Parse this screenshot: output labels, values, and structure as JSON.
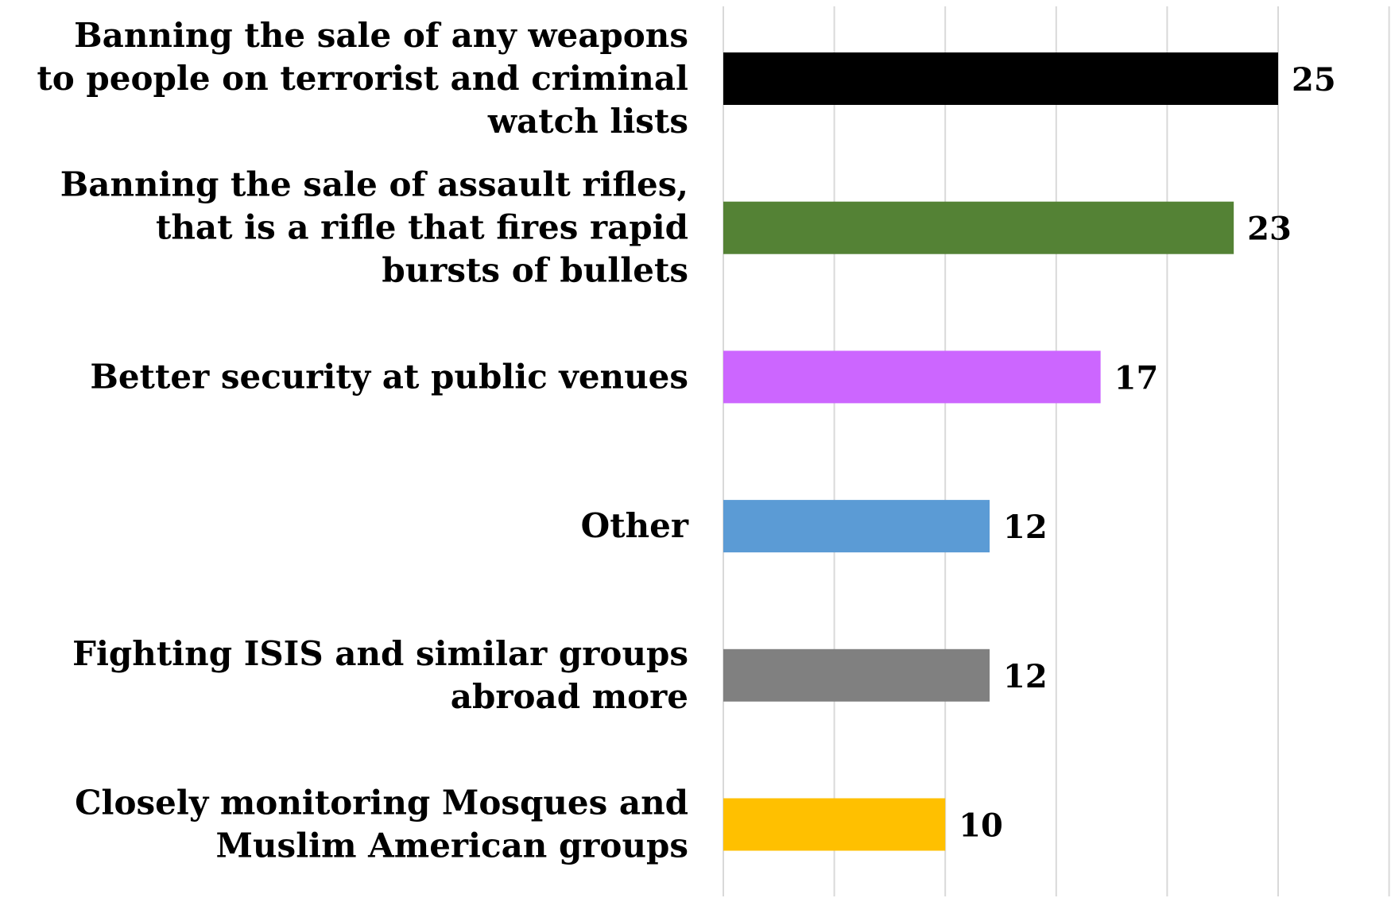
{
  "chart_data": {
    "type": "bar",
    "orientation": "horizontal",
    "categories": [
      "Banning the sale of any weapons to people on terrorist and criminal watch lists",
      "Banning the sale of assault rifles, that is a rifle that fires rapid bursts of bullets",
      "Better security at public venues",
      "Other",
      "Fighting ISIS and similar groups abroad more",
      "Closely monitoring Mosques and Muslim American groups"
    ],
    "category_lines": [
      [
        "Banning the sale of any weapons",
        "to people on terrorist and criminal",
        "watch lists"
      ],
      [
        "Banning the sale of assault rifles,",
        "that is a rifle that fires rapid",
        "bursts of bullets"
      ],
      [
        "Better security at public venues"
      ],
      [
        "Other"
      ],
      [
        "Fighting ISIS and similar groups",
        "abroad more"
      ],
      [
        "Closely monitoring Mosques and",
        "Muslim American groups"
      ]
    ],
    "values": [
      25,
      23,
      17,
      12,
      12,
      10
    ],
    "value_labels": [
      "25",
      "23",
      "17",
      "12",
      "12",
      "10"
    ],
    "colors": [
      "#000000",
      "#548235",
      "#cc66ff",
      "#5b9bd5",
      "#808080",
      "#ffc000"
    ],
    "xlim": [
      0,
      30
    ],
    "gridline_step": 5,
    "grid": true,
    "legend": "none",
    "title": "",
    "xlabel": "",
    "ylabel": ""
  }
}
